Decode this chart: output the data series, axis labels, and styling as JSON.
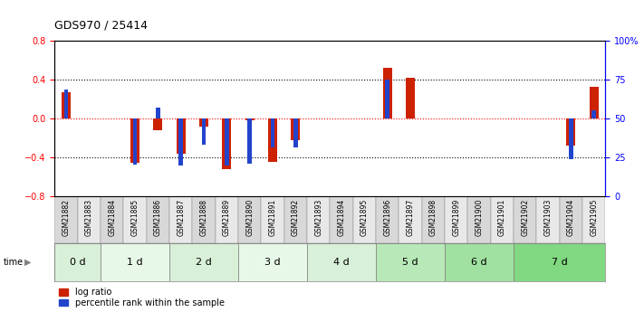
{
  "title": "GDS970 / 25414",
  "samples": [
    "GSM21882",
    "GSM21883",
    "GSM21884",
    "GSM21885",
    "GSM21886",
    "GSM21887",
    "GSM21888",
    "GSM21889",
    "GSM21890",
    "GSM21891",
    "GSM21892",
    "GSM21893",
    "GSM21894",
    "GSM21895",
    "GSM21896",
    "GSM21897",
    "GSM21898",
    "GSM21899",
    "GSM21900",
    "GSM21901",
    "GSM21902",
    "GSM21903",
    "GSM21904",
    "GSM21905"
  ],
  "log_ratio": [
    0.27,
    0.0,
    0.0,
    -0.45,
    -0.12,
    -0.36,
    -0.08,
    -0.52,
    -0.02,
    -0.44,
    -0.22,
    0.0,
    0.0,
    0.0,
    0.52,
    0.42,
    0.0,
    0.0,
    0.0,
    0.0,
    0.0,
    0.0,
    -0.28,
    0.33
  ],
  "percentile_rank_left_axis": [
    0.3,
    0.0,
    0.0,
    -0.47,
    0.11,
    -0.48,
    -0.27,
    -0.48,
    -0.46,
    -0.3,
    -0.3,
    0.0,
    0.0,
    0.0,
    0.4,
    0.0,
    0.0,
    0.0,
    0.0,
    0.0,
    0.0,
    0.0,
    -0.42,
    0.08
  ],
  "time_groups": [
    {
      "label": "0 d",
      "start": 0,
      "end": 2,
      "color": "#d8f0d8"
    },
    {
      "label": "1 d",
      "start": 2,
      "end": 5,
      "color": "#e8f8e8"
    },
    {
      "label": "2 d",
      "start": 5,
      "end": 8,
      "color": "#d8f0d8"
    },
    {
      "label": "3 d",
      "start": 8,
      "end": 11,
      "color": "#e8f8e8"
    },
    {
      "label": "4 d",
      "start": 11,
      "end": 14,
      "color": "#d8f0d8"
    },
    {
      "label": "5 d",
      "start": 14,
      "end": 17,
      "color": "#b8e8b8"
    },
    {
      "label": "6 d",
      "start": 17,
      "end": 20,
      "color": "#a0e0a0"
    },
    {
      "label": "7 d",
      "start": 20,
      "end": 24,
      "color": "#80d880"
    }
  ],
  "sample_bg_colors": [
    "#d8d8d8",
    "#e8e8e8"
  ],
  "ylim_left": [
    -0.8,
    0.8
  ],
  "ylim_right": [
    0,
    100
  ],
  "bar_color_red": "#cc2200",
  "bar_color_blue": "#2244cc",
  "legend_red": "log ratio",
  "legend_blue": "percentile rank within the sample",
  "background_color": "#ffffff"
}
